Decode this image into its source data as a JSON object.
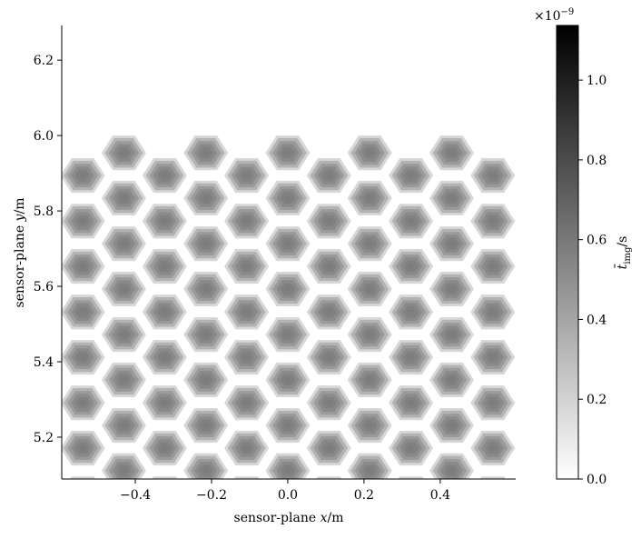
{
  "chart_data": {
    "type": "hexmap",
    "xlabel": [
      "sensor-plane ",
      "x",
      "/m"
    ],
    "ylabel": [
      "sensor-plane ",
      "y",
      "/m"
    ],
    "xlim": [
      -0.593,
      0.598
    ],
    "ylim": [
      5.089,
      6.292
    ],
    "xticks": [
      {
        "value": -0.4,
        "label": "−0.4"
      },
      {
        "value": -0.2,
        "label": "−0.2"
      },
      {
        "value": 0,
        "label": "0.0"
      },
      {
        "value": 0.2,
        "label": "0.2"
      },
      {
        "value": 0.4,
        "label": "0.4"
      }
    ],
    "yticks": [
      5.2,
      5.4,
      5.6,
      5.8,
      {
        "value": 6,
        "label": "6.0"
      },
      6.2
    ],
    "lenslet_columns": [
      {
        "x": -0.538,
        "y": [
          5.894,
          5.773,
          5.653,
          5.532,
          5.412,
          5.291,
          5.171,
          5.05
        ]
      },
      {
        "x": -0.43,
        "y": [
          5.954,
          5.834,
          5.713,
          5.593,
          5.472,
          5.352,
          5.231,
          5.111
        ]
      },
      {
        "x": -0.323,
        "y": [
          5.894,
          5.773,
          5.653,
          5.532,
          5.412,
          5.291,
          5.171,
          5.05
        ]
      },
      {
        "x": -0.215,
        "y": [
          5.954,
          5.834,
          5.713,
          5.593,
          5.472,
          5.352,
          5.231,
          5.111
        ]
      },
      {
        "x": -0.108,
        "y": [
          5.894,
          5.773,
          5.653,
          5.532,
          5.412,
          5.291,
          5.171,
          5.05
        ]
      },
      {
        "x": 0,
        "y": [
          5.954,
          5.834,
          5.713,
          5.593,
          5.472,
          5.352,
          5.231,
          5.111
        ]
      },
      {
        "x": 0.108,
        "y": [
          5.894,
          5.773,
          5.653,
          5.532,
          5.412,
          5.291,
          5.171,
          5.05
        ]
      },
      {
        "x": 0.215,
        "y": [
          5.954,
          5.834,
          5.713,
          5.593,
          5.472,
          5.352,
          5.231,
          5.111
        ]
      },
      {
        "x": 0.323,
        "y": [
          5.894,
          5.773,
          5.653,
          5.532,
          5.412,
          5.291,
          5.171,
          5.05
        ]
      },
      {
        "x": 0.43,
        "y": [
          5.954,
          5.834,
          5.713,
          5.593,
          5.472,
          5.352,
          5.231,
          5.111
        ]
      },
      {
        "x": 0.538,
        "y": [
          5.894,
          5.773,
          5.653,
          5.532,
          5.412,
          5.291,
          5.171,
          5.05
        ]
      }
    ],
    "profile": [
      0.58,
      0.56,
      0.52,
      0.45,
      0.34,
      0.18
    ],
    "clim": [
      0,
      1.137
    ],
    "colorbar_ticks": [
      {
        "value": 0,
        "label": "0.0"
      },
      0.2,
      0.4,
      0.6,
      0.8,
      {
        "value": 1,
        "label": "1.0"
      }
    ],
    "colorbar_offset": {
      "base": "×10",
      "exponent": "−9"
    },
    "colorbar_label": {
      "main": "t̄",
      "sub": "img",
      "unit": "/s"
    }
  }
}
